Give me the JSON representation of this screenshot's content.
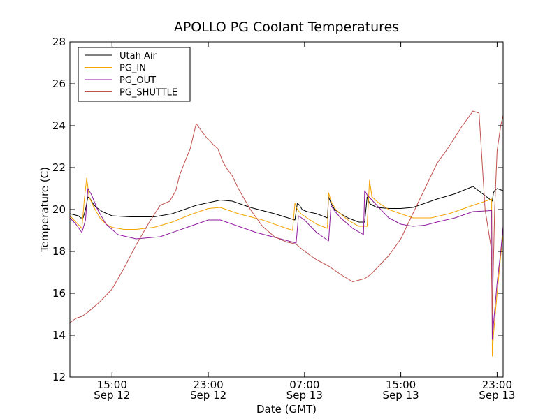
{
  "chart_data": {
    "type": "line",
    "title": "APOLLO PG Coolant Temperatures",
    "xlabel": "Date (GMT)",
    "ylabel": "Temperature (C)",
    "ylim": [
      12,
      28
    ],
    "xlim": [
      11.5,
      47.5
    ],
    "yticks": [
      12,
      14,
      16,
      18,
      20,
      22,
      24,
      26,
      28
    ],
    "xticks": [
      {
        "value": 15,
        "time": "15:00",
        "date": "Sep 12"
      },
      {
        "value": 23,
        "time": "23:00",
        "date": "Sep 12"
      },
      {
        "value": 31,
        "time": "07:00",
        "date": "Sep 13"
      },
      {
        "value": 39,
        "time": "15:00",
        "date": "Sep 13"
      },
      {
        "value": 47,
        "time": "23:00",
        "date": "Sep 13"
      }
    ],
    "legend_position": "top-left",
    "grid": false,
    "series": [
      {
        "name": "Utah Air",
        "color": "#000000",
        "x": [
          11.5,
          12.2,
          12.4,
          12.6,
          12.8,
          13.0,
          13.2,
          13.4,
          13.7,
          14.2,
          15.0,
          16.5,
          18.5,
          20.0,
          22.0,
          24.0,
          25.0,
          26.5,
          28.5,
          30.2,
          30.4,
          30.6,
          30.8,
          31.2,
          32.0,
          32.9,
          33.0,
          33.2,
          33.5,
          34.0,
          34.6,
          35.5,
          36.0,
          36.2,
          36.4,
          36.5,
          37.0,
          38.0,
          39.0,
          40.0,
          41.0,
          42.0,
          43.5,
          45.0,
          46.6,
          46.7,
          46.8,
          47.0,
          47.5
        ],
        "y": [
          19.8,
          19.7,
          19.6,
          19.6,
          20.0,
          20.6,
          20.5,
          20.3,
          20.1,
          19.9,
          19.7,
          19.65,
          19.65,
          19.8,
          20.2,
          20.45,
          20.4,
          20.1,
          19.8,
          19.5,
          20.3,
          20.2,
          20.0,
          19.9,
          19.8,
          19.6,
          20.6,
          20.3,
          20.0,
          19.8,
          19.6,
          19.4,
          19.4,
          20.6,
          20.3,
          20.25,
          20.1,
          20.05,
          20.05,
          20.1,
          20.3,
          20.5,
          20.75,
          21.1,
          20.4,
          20.8,
          20.9,
          21.0,
          20.9
        ]
      },
      {
        "name": "PG_IN",
        "color": "#f5a300",
        "x": [
          11.5,
          12.0,
          12.5,
          12.7,
          12.9,
          13.1,
          13.5,
          14.0,
          14.5,
          15.0,
          16.0,
          17.0,
          18.5,
          20.0,
          21.5,
          23.0,
          24.0,
          25.5,
          27.5,
          30.0,
          30.2,
          30.4,
          30.7,
          31.2,
          32.0,
          32.9,
          33.0,
          33.2,
          33.6,
          34.0,
          34.6,
          35.5,
          36.2,
          36.4,
          36.6,
          37.2,
          38.0,
          39.0,
          40.0,
          41.5,
          43.0,
          45.0,
          46.55,
          46.6,
          46.7,
          47.0,
          47.3,
          47.5
        ],
        "y": [
          19.7,
          19.4,
          19.1,
          20.5,
          21.5,
          20.6,
          20.1,
          19.6,
          19.3,
          19.15,
          19.05,
          19.05,
          19.15,
          19.4,
          19.75,
          20.05,
          20.1,
          19.8,
          19.5,
          19.0,
          20.3,
          20.0,
          19.8,
          19.6,
          19.3,
          19.1,
          20.8,
          20.4,
          20.0,
          19.8,
          19.5,
          19.2,
          19.2,
          21.4,
          20.6,
          20.3,
          20.0,
          19.8,
          19.6,
          19.6,
          19.8,
          20.2,
          20.5,
          13.0,
          14.0,
          16.0,
          17.8,
          18.8
        ]
      },
      {
        "name": "PG_OUT",
        "color": "#8e1a9e",
        "x": [
          11.5,
          12.0,
          12.5,
          12.8,
          13.0,
          13.3,
          13.8,
          14.5,
          15.5,
          17.0,
          19.0,
          21.0,
          23.0,
          24.0,
          25.0,
          27.0,
          29.0,
          30.3,
          30.5,
          31.0,
          31.5,
          32.0,
          33.0,
          33.2,
          33.4,
          34.0,
          35.0,
          35.9,
          36.0,
          36.2,
          37.0,
          38.0,
          39.0,
          40.0,
          41.0,
          42.0,
          43.5,
          45.0,
          46.55,
          46.6,
          46.7,
          47.0,
          47.3,
          47.5
        ],
        "y": [
          19.6,
          19.3,
          18.9,
          19.5,
          21.0,
          20.7,
          20.0,
          19.3,
          18.8,
          18.6,
          18.7,
          19.1,
          19.5,
          19.5,
          19.3,
          18.9,
          18.6,
          18.4,
          19.7,
          19.5,
          19.2,
          18.9,
          18.5,
          20.2,
          20.0,
          19.6,
          19.1,
          18.8,
          20.9,
          20.7,
          20.2,
          19.6,
          19.3,
          19.2,
          19.25,
          19.4,
          19.6,
          19.9,
          19.95,
          13.8,
          14.5,
          16.5,
          18.0,
          19.2
        ]
      },
      {
        "name": "PG_SHUTTLE",
        "color": "#c0504d",
        "x": [
          11.5,
          12.0,
          12.5,
          13.0,
          14.0,
          15.0,
          16.0,
          17.0,
          18.0,
          19.0,
          19.8,
          20.3,
          20.6,
          21.0,
          21.5,
          22.0,
          22.5,
          22.9,
          23.1,
          23.4,
          23.8,
          24.2,
          24.6,
          25.0,
          25.5,
          26.0,
          26.5,
          27.5,
          28.5,
          29.5,
          30.3,
          30.8,
          31.5,
          32.0,
          33.0,
          34.0,
          35.0,
          36.0,
          36.5,
          37.0,
          38.0,
          39.0,
          40.0,
          41.0,
          42.0,
          43.0,
          44.0,
          45.0,
          45.5,
          46.0,
          46.5,
          46.6,
          46.8,
          47.0,
          47.3,
          47.5
        ],
        "y": [
          14.6,
          14.8,
          14.9,
          15.1,
          15.6,
          16.2,
          17.2,
          18.3,
          19.3,
          20.2,
          20.4,
          20.9,
          21.6,
          22.2,
          22.9,
          24.1,
          23.7,
          23.4,
          23.3,
          23.1,
          22.9,
          22.3,
          21.9,
          21.6,
          21.0,
          20.5,
          20.0,
          19.2,
          18.7,
          18.45,
          18.35,
          18.1,
          17.8,
          17.6,
          17.3,
          16.9,
          16.55,
          16.7,
          16.9,
          17.2,
          17.8,
          18.6,
          19.8,
          21.0,
          22.2,
          23.0,
          23.9,
          24.7,
          24.6,
          20.0,
          18.2,
          15.0,
          20.0,
          22.8,
          24.0,
          24.5
        ]
      }
    ]
  }
}
